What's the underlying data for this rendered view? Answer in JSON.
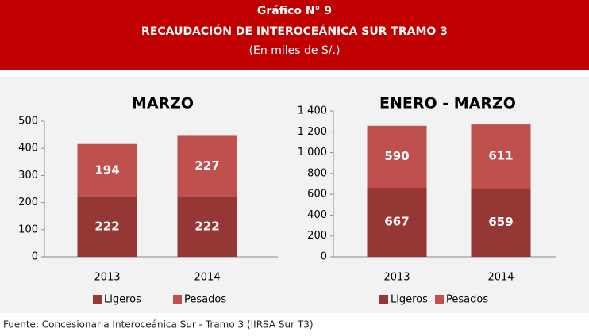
{
  "header": {
    "title": "Gráfico N° 9",
    "subtitle": "RECAUDACIÓN DE INTEROCEÁNICA SUR TRAMO 3",
    "unit": "(En miles de S/.)"
  },
  "chart_data": [
    {
      "type": "bar",
      "stacked": true,
      "title": "MARZO",
      "categories": [
        "2013",
        "2014"
      ],
      "series": [
        {
          "name": "Ligeros",
          "color": "#953735",
          "values": [
            222,
            222
          ]
        },
        {
          "name": "Pesados",
          "color": "#c0504d",
          "values": [
            194,
            227
          ]
        }
      ],
      "ylim": [
        0,
        500
      ],
      "yticks": [
        0,
        100,
        200,
        300,
        400,
        500
      ],
      "legend": "bottom"
    },
    {
      "type": "bar",
      "stacked": true,
      "title": "ENERO - MARZO",
      "categories": [
        "2013",
        "2014"
      ],
      "series": [
        {
          "name": "Ligeros",
          "color": "#953735",
          "values": [
            667,
            659
          ]
        },
        {
          "name": "Pesados",
          "color": "#c0504d",
          "values": [
            590,
            611
          ]
        }
      ],
      "ylim": [
        0,
        1400
      ],
      "yticks": [
        0,
        200,
        400,
        600,
        800,
        {
          "value": 1000,
          "label": "1 000"
        },
        {
          "value": 1200,
          "label": "1 200"
        },
        {
          "value": 1400,
          "label": "1 400"
        }
      ],
      "legend": "bottom"
    }
  ],
  "source": "Fuente: Concesionaria Interoceánica Sur - Tramo 3 (IIRSA Sur T3)"
}
